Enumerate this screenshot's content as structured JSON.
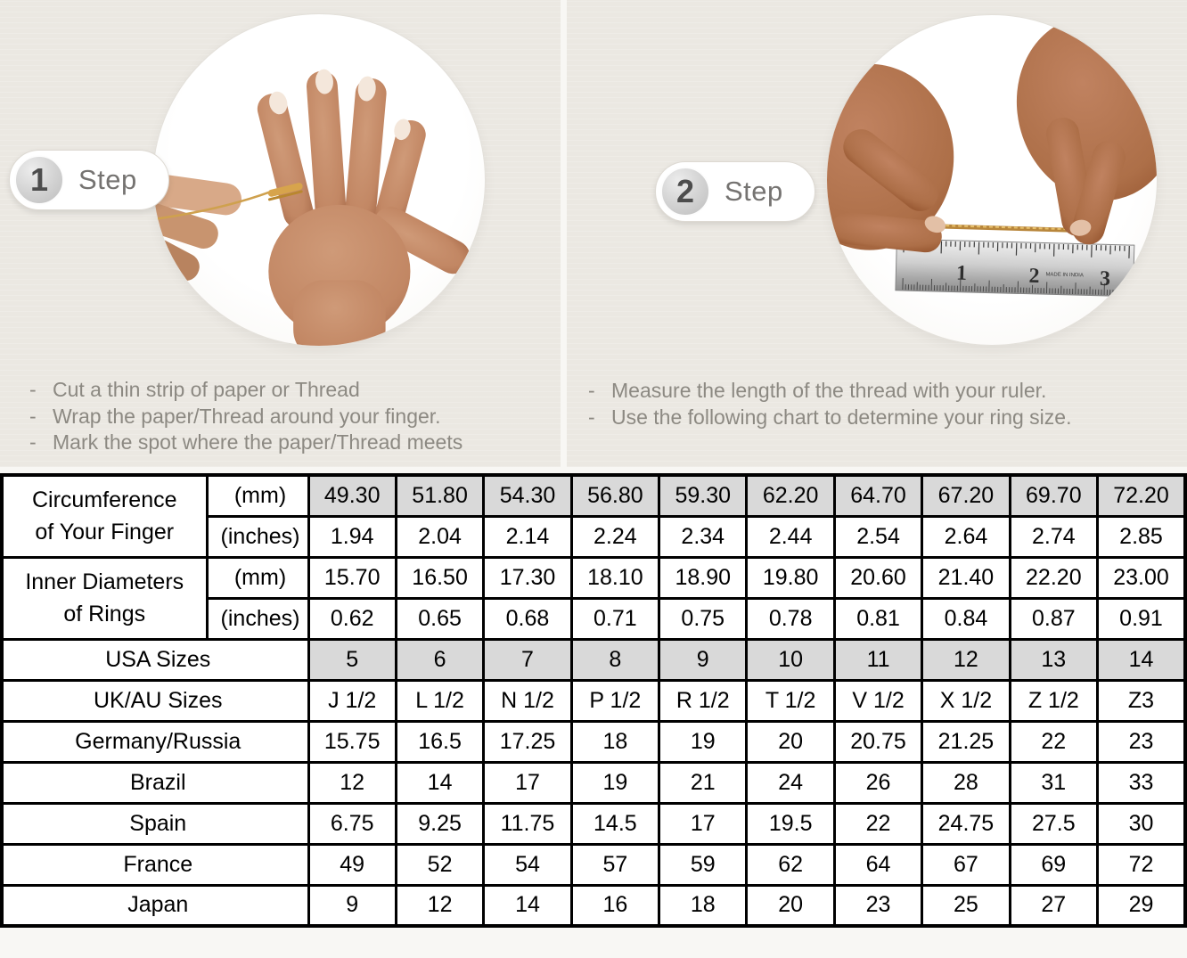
{
  "bullet_dash": "-",
  "steps": [
    {
      "number": "1",
      "label": "Step",
      "instructions": [
        "Cut a thin strip of paper or Thread",
        "Wrap the paper/Thread around your finger.",
        "Mark the spot where the paper/Thread meets"
      ]
    },
    {
      "number": "2",
      "label": "Step",
      "instructions": [
        "Measure the length of the thread with your ruler.",
        "Use the following chart to determine your ring size."
      ]
    }
  ],
  "illustrations": {
    "step1": {
      "icon": "hand-with-thread-photo"
    },
    "step2": {
      "icon": "measuring-thread-with-ruler-photo",
      "ruler_numbers": [
        "1",
        "2",
        "3"
      ],
      "ruler_fine_print": "MADE IN INDIA"
    }
  },
  "chart_data": {
    "type": "table",
    "highlight_color": "#d9d9d9",
    "groups": [
      {
        "label_lines": [
          "Circumference",
          "of Your Finger"
        ],
        "sub_rows": [
          {
            "unit": "(mm)",
            "highlight": true,
            "values": [
              "49.30",
              "51.80",
              "54.30",
              "56.80",
              "59.30",
              "62.20",
              "64.70",
              "67.20",
              "69.70",
              "72.20"
            ]
          },
          {
            "unit": "(inches)",
            "highlight": false,
            "values": [
              "1.94",
              "2.04",
              "2.14",
              "2.24",
              "2.34",
              "2.44",
              "2.54",
              "2.64",
              "2.74",
              "2.85"
            ]
          }
        ]
      },
      {
        "label_lines": [
          "Inner Diameters",
          "of Rings"
        ],
        "sub_rows": [
          {
            "unit": "(mm)",
            "highlight": false,
            "values": [
              "15.70",
              "16.50",
              "17.30",
              "18.10",
              "18.90",
              "19.80",
              "20.60",
              "21.40",
              "22.20",
              "23.00"
            ]
          },
          {
            "unit": "(inches)",
            "highlight": false,
            "values": [
              "0.62",
              "0.65",
              "0.68",
              "0.71",
              "0.75",
              "0.78",
              "0.81",
              "0.84",
              "0.87",
              "0.91"
            ]
          }
        ]
      }
    ],
    "rows": [
      {
        "label": "USA Sizes",
        "highlight": true,
        "values": [
          "5",
          "6",
          "7",
          "8",
          "9",
          "10",
          "11",
          "12",
          "13",
          "14"
        ]
      },
      {
        "label": "UK/AU Sizes",
        "highlight": false,
        "values": [
          "J 1/2",
          "L 1/2",
          "N 1/2",
          "P 1/2",
          "R 1/2",
          "T 1/2",
          "V 1/2",
          "X 1/2",
          "Z 1/2",
          "Z3"
        ]
      },
      {
        "label": "Germany/Russia",
        "highlight": false,
        "values": [
          "15.75",
          "16.5",
          "17.25",
          "18",
          "19",
          "20",
          "20.75",
          "21.25",
          "22",
          "23"
        ]
      },
      {
        "label": "Brazil",
        "highlight": false,
        "values": [
          "12",
          "14",
          "17",
          "19",
          "21",
          "24",
          "26",
          "28",
          "31",
          "33"
        ]
      },
      {
        "label": "Spain",
        "highlight": false,
        "values": [
          "6.75",
          "9.25",
          "11.75",
          "14.5",
          "17",
          "19.5",
          "22",
          "24.75",
          "27.5",
          "30"
        ]
      },
      {
        "label": "France",
        "highlight": false,
        "values": [
          "49",
          "52",
          "54",
          "57",
          "59",
          "62",
          "64",
          "67",
          "69",
          "72"
        ]
      },
      {
        "label": "Japan",
        "highlight": false,
        "values": [
          "9",
          "12",
          "14",
          "16",
          "18",
          "20",
          "23",
          "25",
          "27",
          "29"
        ]
      }
    ]
  }
}
